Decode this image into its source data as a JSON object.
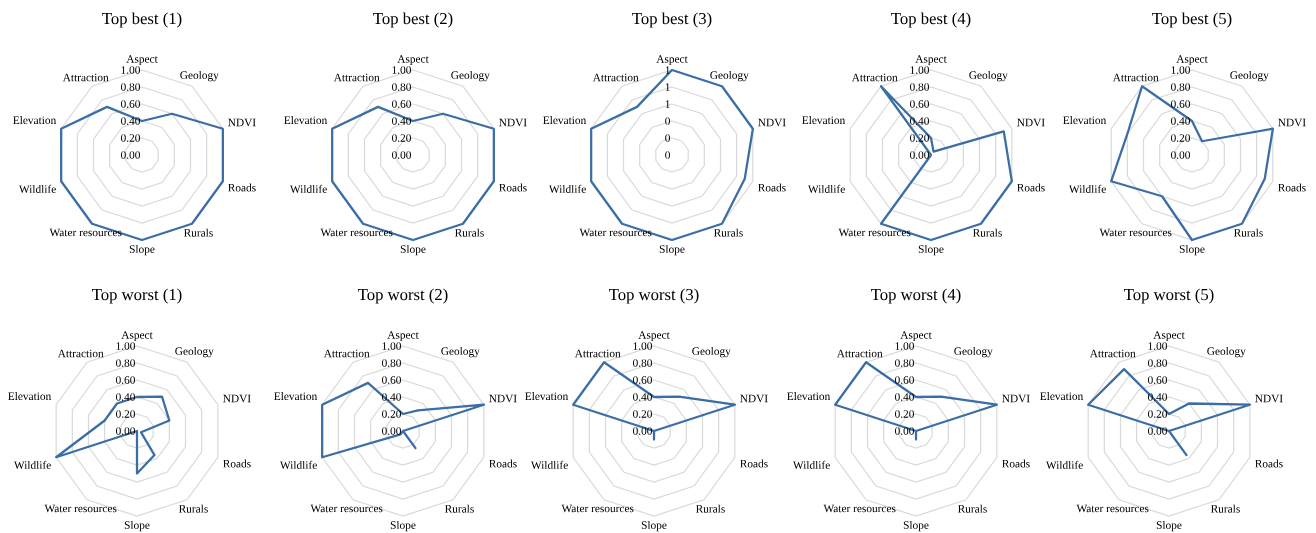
{
  "chart_data": [
    {
      "type": "radar",
      "title": "Top best (1)",
      "categories": [
        "Aspect",
        "Geology",
        "NDVI",
        "Roads",
        "Rurals",
        "Slope",
        "Water resources",
        "Wildlife",
        "Elevation",
        "Attraction"
      ],
      "series": [
        {
          "color": "#3b6ea5",
          "values": [
            0.4,
            0.6,
            1,
            1,
            1,
            1,
            1,
            1,
            1,
            0.7
          ]
        }
      ],
      "ylim": [
        0,
        1
      ],
      "yticks": [
        {
          "value": 0,
          "label": "0.00"
        },
        {
          "value": 0.2,
          "label": "0.20"
        },
        {
          "value": 0.4,
          "label": "0.40"
        },
        {
          "value": 0.6,
          "label": "0.60"
        },
        {
          "value": 0.8,
          "label": "0.80"
        },
        {
          "value": 1,
          "label": "1.00"
        }
      ],
      "grid": true
    },
    {
      "type": "radar",
      "title": "Top best (2)",
      "categories": [
        "Aspect",
        "Geology",
        "NDVI",
        "Roads",
        "Rurals",
        "Slope",
        "Water resources",
        "Wildlife",
        "Elevation",
        "Attraction"
      ],
      "series": [
        {
          "color": "#3b6ea5",
          "values": [
            0.4,
            0.6,
            1,
            1,
            1,
            1,
            1,
            1,
            1,
            0.7
          ]
        }
      ],
      "ylim": [
        0,
        1
      ],
      "yticks": [
        {
          "value": 0,
          "label": "0.00"
        },
        {
          "value": 0.2,
          "label": "0.20"
        },
        {
          "value": 0.4,
          "label": "0.40"
        },
        {
          "value": 0.6,
          "label": "0.60"
        },
        {
          "value": 0.8,
          "label": "0.80"
        },
        {
          "value": 1,
          "label": "1.00"
        }
      ],
      "grid": true
    },
    {
      "type": "radar",
      "title": "Top best (3)",
      "categories": [
        "Aspect",
        "Geology",
        "NDVI",
        "Roads",
        "Rurals",
        "Slope",
        "Water resources",
        "Wildlife",
        "Elevation",
        "Attraction"
      ],
      "series": [
        {
          "color": "#3b6ea5",
          "values": [
            1,
            1,
            1,
            0.9,
            1,
            1,
            1,
            1,
            1,
            0.7
          ]
        }
      ],
      "ylim": [
        0,
        1
      ],
      "yticks": [
        {
          "value": 0,
          "label": "0"
        },
        {
          "value": 0.2,
          "label": "0"
        },
        {
          "value": 0.4,
          "label": "0"
        },
        {
          "value": 0.6,
          "label": "1"
        },
        {
          "value": 0.8,
          "label": "1"
        },
        {
          "value": 1,
          "label": "1"
        }
      ],
      "grid": true
    },
    {
      "type": "radar",
      "title": "Top best (4)",
      "categories": [
        "Aspect",
        "Geology",
        "NDVI",
        "Roads",
        "Rurals",
        "Slope",
        "Water resources",
        "Wildlife",
        "Elevation",
        "Attraction"
      ],
      "series": [
        {
          "color": "#3b6ea5",
          "values": [
            0.2,
            0.05,
            0.9,
            1,
            1,
            1,
            1,
            0,
            0,
            1
          ]
        }
      ],
      "ylim": [
        0,
        1
      ],
      "yticks": [
        {
          "value": 0,
          "label": "0.00"
        },
        {
          "value": 0.2,
          "label": "0.20"
        },
        {
          "value": 0.4,
          "label": "0.40"
        },
        {
          "value": 0.6,
          "label": "0.60"
        },
        {
          "value": 0.8,
          "label": "0.80"
        },
        {
          "value": 1,
          "label": "1.00"
        }
      ],
      "grid": true
    },
    {
      "type": "radar",
      "title": "Top best (5)",
      "categories": [
        "Aspect",
        "Geology",
        "NDVI",
        "Roads",
        "Rurals",
        "Slope",
        "Water resources",
        "Wildlife",
        "Elevation",
        "Attraction"
      ],
      "series": [
        {
          "color": "#3b6ea5",
          "values": [
            0.4,
            0.2,
            1,
            0.9,
            1,
            1,
            0.6,
            1,
            0.8,
            1
          ]
        }
      ],
      "ylim": [
        0,
        1
      ],
      "yticks": [
        {
          "value": 0,
          "label": "0.00"
        },
        {
          "value": 0.2,
          "label": "0.20"
        },
        {
          "value": 0.4,
          "label": "0.40"
        },
        {
          "value": 0.6,
          "label": "0.60"
        },
        {
          "value": 0.8,
          "label": "0.80"
        },
        {
          "value": 1,
          "label": "1.00"
        }
      ],
      "grid": true
    },
    {
      "type": "radar",
      "title": "Top worst (1)",
      "categories": [
        "Aspect",
        "Geology",
        "NDVI",
        "Roads",
        "Rurals",
        "Slope",
        "Water resources",
        "Wildlife",
        "Elevation",
        "Attraction"
      ],
      "series": [
        {
          "color": "#3b6ea5",
          "values": [
            0.4,
            0.5,
            0.4,
            0.05,
            0.35,
            0.5,
            0,
            1,
            0.4,
            0.4
          ]
        }
      ],
      "ylim": [
        0,
        1
      ],
      "yticks": [
        {
          "value": 0,
          "label": "0.00"
        },
        {
          "value": 0.2,
          "label": "0.20"
        },
        {
          "value": 0.4,
          "label": "0.40"
        },
        {
          "value": 0.6,
          "label": "0.60"
        },
        {
          "value": 0.8,
          "label": "0.80"
        },
        {
          "value": 1,
          "label": "1.00"
        }
      ],
      "grid": true
    },
    {
      "type": "radar",
      "title": "Top worst (2)",
      "categories": [
        "Aspect",
        "Geology",
        "NDVI",
        "Roads",
        "Rurals",
        "Slope",
        "Water resources",
        "Wildlife",
        "Elevation",
        "Attraction"
      ],
      "series": [
        {
          "color": "#3b6ea5",
          "values": [
            0.2,
            0.3,
            1,
            0,
            0.25,
            0,
            0.05,
            1,
            1,
            0.7
          ]
        }
      ],
      "ylim": [
        0,
        1
      ],
      "yticks": [
        {
          "value": 0,
          "label": "0.00"
        },
        {
          "value": 0.2,
          "label": "0.20"
        },
        {
          "value": 0.4,
          "label": "0.40"
        },
        {
          "value": 0.6,
          "label": "0.60"
        },
        {
          "value": 0.8,
          "label": "0.80"
        },
        {
          "value": 1,
          "label": "1.00"
        }
      ],
      "grid": true
    },
    {
      "type": "radar",
      "title": "Top worst (3)",
      "categories": [
        "Aspect",
        "Geology",
        "NDVI",
        "Roads",
        "Rurals",
        "Slope",
        "Water resources",
        "Wildlife",
        "Elevation",
        "Attraction"
      ],
      "series": [
        {
          "color": "#3b6ea5",
          "values": [
            0.4,
            0.5,
            1,
            0,
            0,
            0.1,
            0,
            0,
            1,
            1
          ]
        }
      ],
      "ylim": [
        0,
        1
      ],
      "yticks": [
        {
          "value": 0,
          "label": "0.00"
        },
        {
          "value": 0.2,
          "label": "0.20"
        },
        {
          "value": 0.4,
          "label": "0.40"
        },
        {
          "value": 0.6,
          "label": "0.60"
        },
        {
          "value": 0.8,
          "label": "0.80"
        },
        {
          "value": 1,
          "label": "1.00"
        }
      ],
      "grid": true
    },
    {
      "type": "radar",
      "title": "Top worst (4)",
      "categories": [
        "Aspect",
        "Geology",
        "NDVI",
        "Roads",
        "Rurals",
        "Slope",
        "Water resources",
        "Wildlife",
        "Elevation",
        "Attraction"
      ],
      "series": [
        {
          "color": "#3b6ea5",
          "values": [
            0.4,
            0.5,
            1,
            0,
            0,
            0.1,
            0,
            0,
            1,
            1
          ]
        }
      ],
      "ylim": [
        0,
        1
      ],
      "yticks": [
        {
          "value": 0,
          "label": "0.00"
        },
        {
          "value": 0.2,
          "label": "0.20"
        },
        {
          "value": 0.4,
          "label": "0.40"
        },
        {
          "value": 0.6,
          "label": "0.60"
        },
        {
          "value": 0.8,
          "label": "0.80"
        },
        {
          "value": 1,
          "label": "1.00"
        }
      ],
      "grid": true
    },
    {
      "type": "radar",
      "title": "Top worst (5)",
      "categories": [
        "Aspect",
        "Geology",
        "NDVI",
        "Roads",
        "Rurals",
        "Slope",
        "Water resources",
        "Wildlife",
        "Elevation",
        "Attraction"
      ],
      "series": [
        {
          "color": "#3b6ea5",
          "values": [
            0.2,
            0.4,
            1,
            0,
            0.35,
            0,
            0,
            0,
            1,
            0.9
          ]
        }
      ],
      "ylim": [
        0,
        1
      ],
      "yticks": [
        {
          "value": 0,
          "label": "0.00"
        },
        {
          "value": 0.2,
          "label": "0.20"
        },
        {
          "value": 0.4,
          "label": "0.40"
        },
        {
          "value": 0.6,
          "label": "0.60"
        },
        {
          "value": 0.8,
          "label": "0.80"
        },
        {
          "value": 1,
          "label": "1.00"
        }
      ],
      "grid": true
    }
  ]
}
